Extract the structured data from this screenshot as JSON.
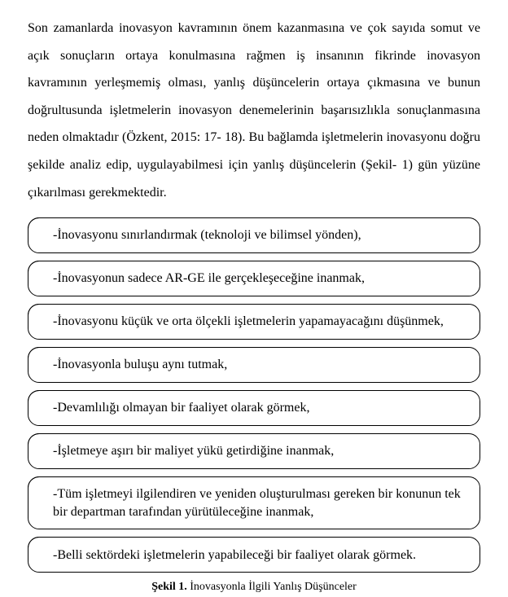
{
  "paragraph": "Son zamanlarda inovasyon kavramının önem kazanmasına ve çok sayıda somut ve açık sonuçların ortaya konulmasına rağmen iş insanının fikrinde inovasyon kavramının yerleşmemiş olması, yanlış düşüncelerin ortaya çıkmasına ve bunun doğrultusunda işletmelerin inovasyon denemelerinin başarısızlıkla sonuçlanmasına neden olmaktadır (Özkent, 2015: 17- 18). Bu bağlamda işletmelerin inovasyonu doğru şekilde analiz edip, uygulayabilmesi için yanlış düşüncelerin (Şekil- 1) gün yüzüne çıkarılması gerekmektedir.",
  "items": [
    "-İnovasyonu sınırlandırmak (teknoloji ve bilimsel yönden),",
    "-İnovasyonun sadece AR-GE ile gerçekleşeceğine inanmak,",
    "-İnovasyonu küçük ve orta ölçekli işletmelerin yapamayacağını düşünmek,",
    "-İnovasyonla buluşu aynı tutmak,",
    "-Devamlılığı olmayan bir faaliyet olarak görmek,",
    "-İşletmeye aşırı bir maliyet yükü getirdiğine inanmak,",
    "-Tüm işletmeyi ilgilendiren ve yeniden oluşturulması gereken bir konunun tek bir departman tarafından yürütüleceğine inanmak,",
    "-Belli sektördeki işletmelerin yapabileceği bir faaliyet olarak görmek."
  ],
  "caption_bold": "Şekil 1.",
  "caption_rest": " İnovasyonla İlgili Yanlış Düşünceler"
}
